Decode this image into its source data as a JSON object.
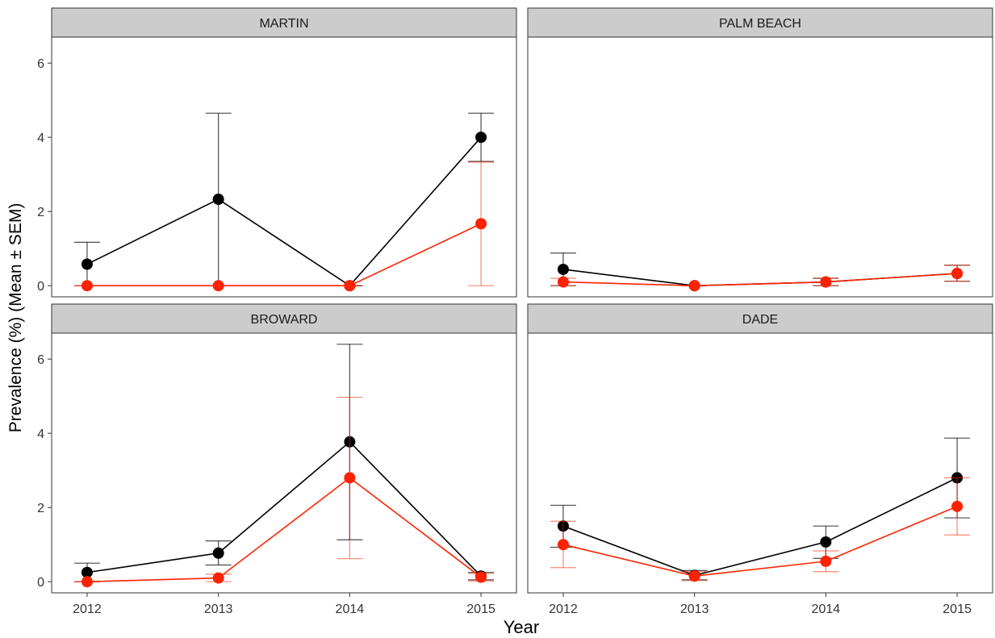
{
  "chart_data": {
    "type": "line",
    "xlabel": "Year",
    "ylabel": "Prevalence (%) (Mean ± SEM)",
    "x": [
      2012,
      2013,
      2014,
      2015
    ],
    "x_ticks": [
      "2012",
      "2013",
      "2014",
      "2015"
    ],
    "ylim": [
      -0.3,
      6.7
    ],
    "y_ticks": [
      "0",
      "2",
      "4",
      "6"
    ],
    "y_tick_values": [
      0,
      2,
      4,
      6
    ],
    "grid": false,
    "series_colors": [
      "#000000",
      "#ff2200"
    ],
    "panels": [
      {
        "title": "MARTIN",
        "series": [
          {
            "values": [
              0.58,
              2.33,
              0.0,
              4.0
            ],
            "lower": [
              0.0,
              0.0,
              0.0,
              3.35
            ],
            "upper": [
              1.17,
              4.65,
              0.0,
              4.65
            ]
          },
          {
            "values": [
              0.0,
              0.0,
              0.0,
              1.67
            ],
            "lower": [
              0.0,
              0.0,
              0.0,
              0.0
            ],
            "upper": [
              0.0,
              0.0,
              0.0,
              3.33
            ]
          }
        ]
      },
      {
        "title": "PALM BEACH",
        "series": [
          {
            "values": [
              0.44,
              0.0,
              0.1,
              0.33
            ],
            "lower": [
              0.0,
              0.0,
              0.0,
              0.12
            ],
            "upper": [
              0.88,
              0.0,
              0.2,
              0.55
            ]
          },
          {
            "values": [
              0.1,
              0.0,
              0.1,
              0.33
            ],
            "lower": [
              0.0,
              0.0,
              0.0,
              0.12
            ],
            "upper": [
              0.2,
              0.0,
              0.2,
              0.55
            ]
          }
        ]
      },
      {
        "title": "BROWARD",
        "series": [
          {
            "values": [
              0.25,
              0.77,
              3.77,
              0.15
            ],
            "lower": [
              0.0,
              0.45,
              1.13,
              0.05
            ],
            "upper": [
              0.5,
              1.1,
              6.4,
              0.25
            ]
          },
          {
            "values": [
              0.0,
              0.1,
              2.8,
              0.12
            ],
            "lower": [
              0.0,
              0.0,
              0.62,
              0.02
            ],
            "upper": [
              0.0,
              0.2,
              4.97,
              0.22
            ]
          }
        ]
      },
      {
        "title": "DADE",
        "series": [
          {
            "values": [
              1.5,
              0.17,
              1.07,
              2.8
            ],
            "lower": [
              0.93,
              0.05,
              0.63,
              1.72
            ],
            "upper": [
              2.06,
              0.3,
              1.5,
              3.87
            ]
          },
          {
            "values": [
              1.0,
              0.15,
              0.55,
              2.03
            ],
            "lower": [
              0.38,
              0.03,
              0.27,
              1.26
            ],
            "upper": [
              1.63,
              0.27,
              0.83,
              2.8
            ]
          }
        ]
      }
    ]
  }
}
